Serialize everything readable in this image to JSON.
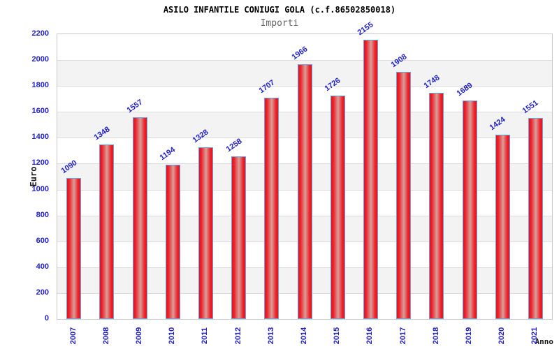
{
  "chart_data": {
    "type": "bar",
    "title": "ASILO INFANTILE CONIUGI GOLA (c.f.86502850018)",
    "subtitle": "Importi",
    "xlabel": "Anno",
    "ylabel": "Euro",
    "categories": [
      "2007",
      "2008",
      "2009",
      "2010",
      "2011",
      "2012",
      "2013",
      "2014",
      "2015",
      "2016",
      "2017",
      "2018",
      "2019",
      "2020",
      "2021"
    ],
    "values": [
      1090,
      1348,
      1557,
      1194,
      1328,
      1258,
      1707,
      1966,
      1726,
      2155,
      1908,
      1748,
      1689,
      1424,
      1551
    ],
    "ylim": [
      0,
      2200
    ],
    "ytick_step": 200,
    "grid": "horizontal-bands-alternating",
    "legend": "none",
    "colors": {
      "bar_edge_red": "#e8121b",
      "bar_mid_red": "#ee2029",
      "bar_center_light": "#d7a09b",
      "bar_border_blue": "#62a7e4",
      "label_blue": "#2121c8",
      "band_gray": "#f3f3f3",
      "gridline_gray": "#dcdcdc",
      "plot_border_gray": "#c9c9c9",
      "title_color": "#000000",
      "subtitle_color": "#666666",
      "axis_title_color": "#1a1a1a"
    }
  }
}
